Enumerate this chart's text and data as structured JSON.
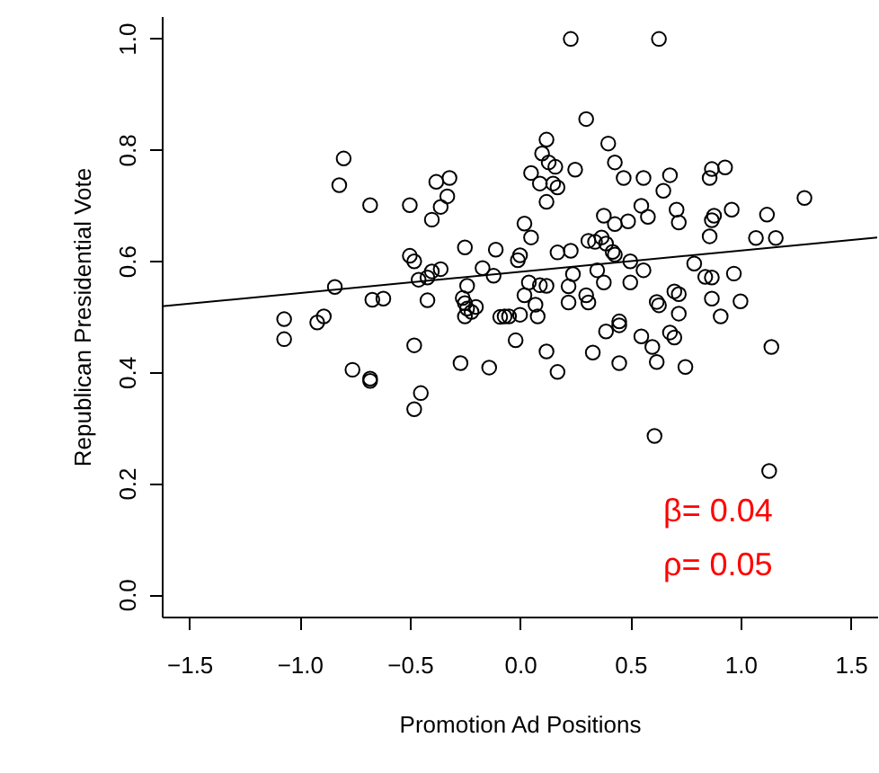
{
  "chart_data": {
    "type": "scatter",
    "xlabel": "Promotion Ad Positions",
    "ylabel": "Republican Presidential Vote",
    "xlim": [
      -1.625,
      1.62
    ],
    "ylim": [
      -0.04,
      1.04
    ],
    "xticks": [
      {
        "value": -1.5,
        "label": "−1.5"
      },
      {
        "value": -1,
        "label": "−1.0"
      },
      {
        "value": -0.5,
        "label": "−0.5"
      },
      {
        "value": 0,
        "label": "0.0"
      },
      {
        "value": 0.5,
        "label": "0.5"
      },
      {
        "value": 1,
        "label": "1.0"
      },
      {
        "value": 1.5,
        "label": "1.5"
      }
    ],
    "yticks": [
      {
        "value": 0,
        "label": "0.0"
      },
      {
        "value": 0.2,
        "label": "0.2"
      },
      {
        "value": 0.4,
        "label": "0.4"
      },
      {
        "value": 0.6,
        "label": "0.6"
      },
      {
        "value": 0.8,
        "label": "0.8"
      },
      {
        "value": 1,
        "label": "1.0"
      }
    ],
    "grid": false,
    "annotations": [
      "β= 0.04",
      "ρ= 0.05"
    ],
    "series": [
      {
        "type": "scatter",
        "color": "#000000",
        "marker": "circle",
        "x": [
          -0.8,
          -0.82,
          -0.68,
          -0.5,
          -0.38,
          -0.32,
          -0.33,
          -0.36,
          -0.4,
          -0.25,
          -0.11,
          -0.5,
          -0.48,
          -0.36,
          -0.4,
          -0.46,
          -0.42,
          -0.17,
          -0.12,
          -0.24,
          -0.84,
          -0.67,
          -0.62,
          -0.42,
          -0.26,
          -0.25,
          -0.24,
          -0.2,
          -0.25,
          -0.22,
          -0.09,
          -1.07,
          -0.89,
          -0.92,
          -1.07,
          -0.48,
          -0.76,
          -0.68,
          -0.68,
          -0.45,
          -0.48,
          -0.27,
          -0.14,
          0.23,
          0.63,
          0.3,
          0.12,
          0.4,
          0.1,
          0.13,
          0.43,
          0.16,
          0.25,
          0.05,
          0.47,
          0.56,
          0.68,
          0.87,
          0.93,
          0.86,
          0.09,
          0.15,
          0.17,
          0.65,
          0.12,
          1.29,
          0.55,
          0.71,
          0.96,
          0.38,
          0.58,
          0.49,
          0.43,
          0.72,
          0.88,
          0.87,
          1.12,
          0.02,
          0.05,
          0.86,
          1.07,
          1.16,
          0.31,
          0.34,
          0.37,
          0.39,
          0.0,
          -0.01,
          0.17,
          0.23,
          0.42,
          0.43,
          0.5,
          0.79,
          0.56,
          0.35,
          0.24,
          0.84,
          0.87,
          0.97,
          0.38,
          0.5,
          0.04,
          0.09,
          0.12,
          0.22,
          0.02,
          0.3,
          0.31,
          0.22,
          0.07,
          0.62,
          0.63,
          0.7,
          0.72,
          0.87,
          1.0,
          -0.07,
          -0.05,
          0.0,
          0.08,
          0.45,
          0.91,
          0.72,
          -0.02,
          0.12,
          0.17,
          0.33,
          0.39,
          0.45,
          0.45,
          0.55,
          0.6,
          0.68,
          0.7,
          0.62,
          0.75,
          1.14,
          0.61,
          1.13
        ],
        "values": [
          0.784,
          0.736,
          0.7,
          0.7,
          0.742,
          0.749,
          0.716,
          0.697,
          0.674,
          0.624,
          0.62,
          0.609,
          0.599,
          0.585,
          0.581,
          0.566,
          0.57,
          0.587,
          0.573,
          0.555,
          0.553,
          0.53,
          0.532,
          0.529,
          0.533,
          0.524,
          0.514,
          0.517,
          0.5,
          0.508,
          0.499,
          0.495,
          0.5,
          0.489,
          0.459,
          0.448,
          0.404,
          0.388,
          0.384,
          0.362,
          0.333,
          0.416,
          0.408,
          0.999,
          0.999,
          0.855,
          0.818,
          0.811,
          0.793,
          0.777,
          0.777,
          0.769,
          0.764,
          0.758,
          0.749,
          0.749,
          0.754,
          0.765,
          0.768,
          0.749,
          0.739,
          0.739,
          0.732,
          0.726,
          0.706,
          0.713,
          0.699,
          0.692,
          0.692,
          0.681,
          0.679,
          0.671,
          0.666,
          0.669,
          0.681,
          0.673,
          0.683,
          0.667,
          0.642,
          0.644,
          0.641,
          0.641,
          0.636,
          0.634,
          0.642,
          0.631,
          0.61,
          0.601,
          0.615,
          0.618,
          0.616,
          0.611,
          0.599,
          0.595,
          0.583,
          0.583,
          0.576,
          0.571,
          0.57,
          0.577,
          0.561,
          0.561,
          0.561,
          0.556,
          0.555,
          0.554,
          0.538,
          0.538,
          0.525,
          0.525,
          0.521,
          0.526,
          0.52,
          0.545,
          0.54,
          0.532,
          0.527,
          0.5,
          0.5,
          0.503,
          0.5,
          0.491,
          0.5,
          0.505,
          0.457,
          0.437,
          0.4,
          0.435,
          0.473,
          0.484,
          0.416,
          0.464,
          0.445,
          0.471,
          0.462,
          0.418,
          0.409,
          0.445,
          0.285,
          0.222
        ]
      },
      {
        "type": "line",
        "color": "#000000",
        "marker": "none",
        "x": [
          -1.625,
          1.62
        ],
        "values": [
          0.518,
          0.642
        ]
      }
    ]
  }
}
